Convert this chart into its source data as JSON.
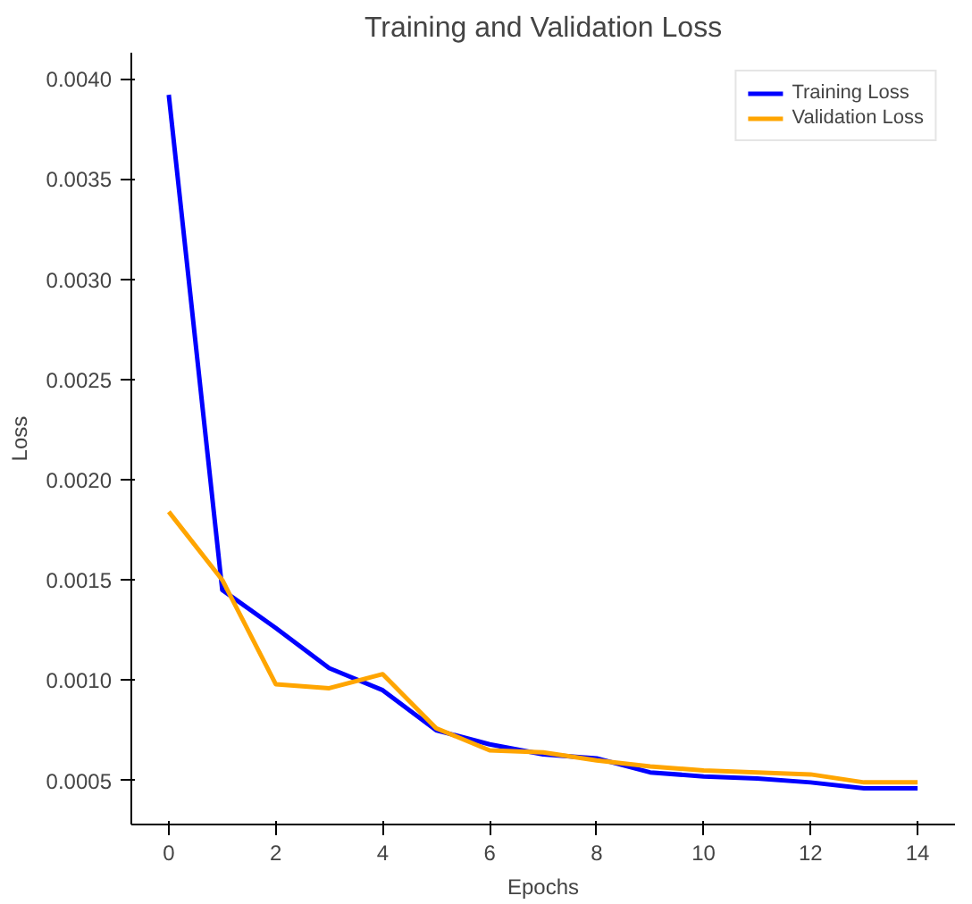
{
  "chart_data": {
    "type": "line",
    "title": "Training and Validation Loss",
    "xlabel": "Epochs",
    "ylabel": "Loss",
    "x": [
      0,
      1,
      2,
      3,
      4,
      5,
      6,
      7,
      8,
      9,
      10,
      11,
      12,
      13,
      14
    ],
    "series": [
      {
        "name": "Training Loss",
        "color": "#0000ff",
        "values": [
          0.00392,
          0.00145,
          0.00126,
          0.00106,
          0.00095,
          0.00075,
          0.00068,
          0.00063,
          0.00061,
          0.00054,
          0.00052,
          0.00051,
          0.00049,
          0.00046,
          0.00046
        ]
      },
      {
        "name": "Validation Loss",
        "color": "#ffa500",
        "values": [
          0.00184,
          0.0015,
          0.00098,
          0.00096,
          0.00103,
          0.00076,
          0.00065,
          0.00064,
          0.0006,
          0.00057,
          0.00055,
          0.00054,
          0.00053,
          0.00049,
          0.00049
        ]
      }
    ],
    "xlim": [
      -0.7,
      14.7
    ],
    "ylim": [
      0.00028,
      0.00413
    ],
    "xticks": [
      0,
      2,
      4,
      6,
      8,
      10,
      12,
      14
    ],
    "yticks": [
      0.0005,
      {
        "value": 0.001,
        "label": "0.0010"
      },
      0.0015,
      {
        "value": 0.002,
        "label": "0.0020"
      },
      0.0025,
      {
        "value": 0.003,
        "label": "0.0030"
      },
      0.0035,
      {
        "value": 0.004,
        "label": "0.0040"
      }
    ],
    "grid": false,
    "legend": "top right",
    "line_style": "solid",
    "marker": "none"
  }
}
